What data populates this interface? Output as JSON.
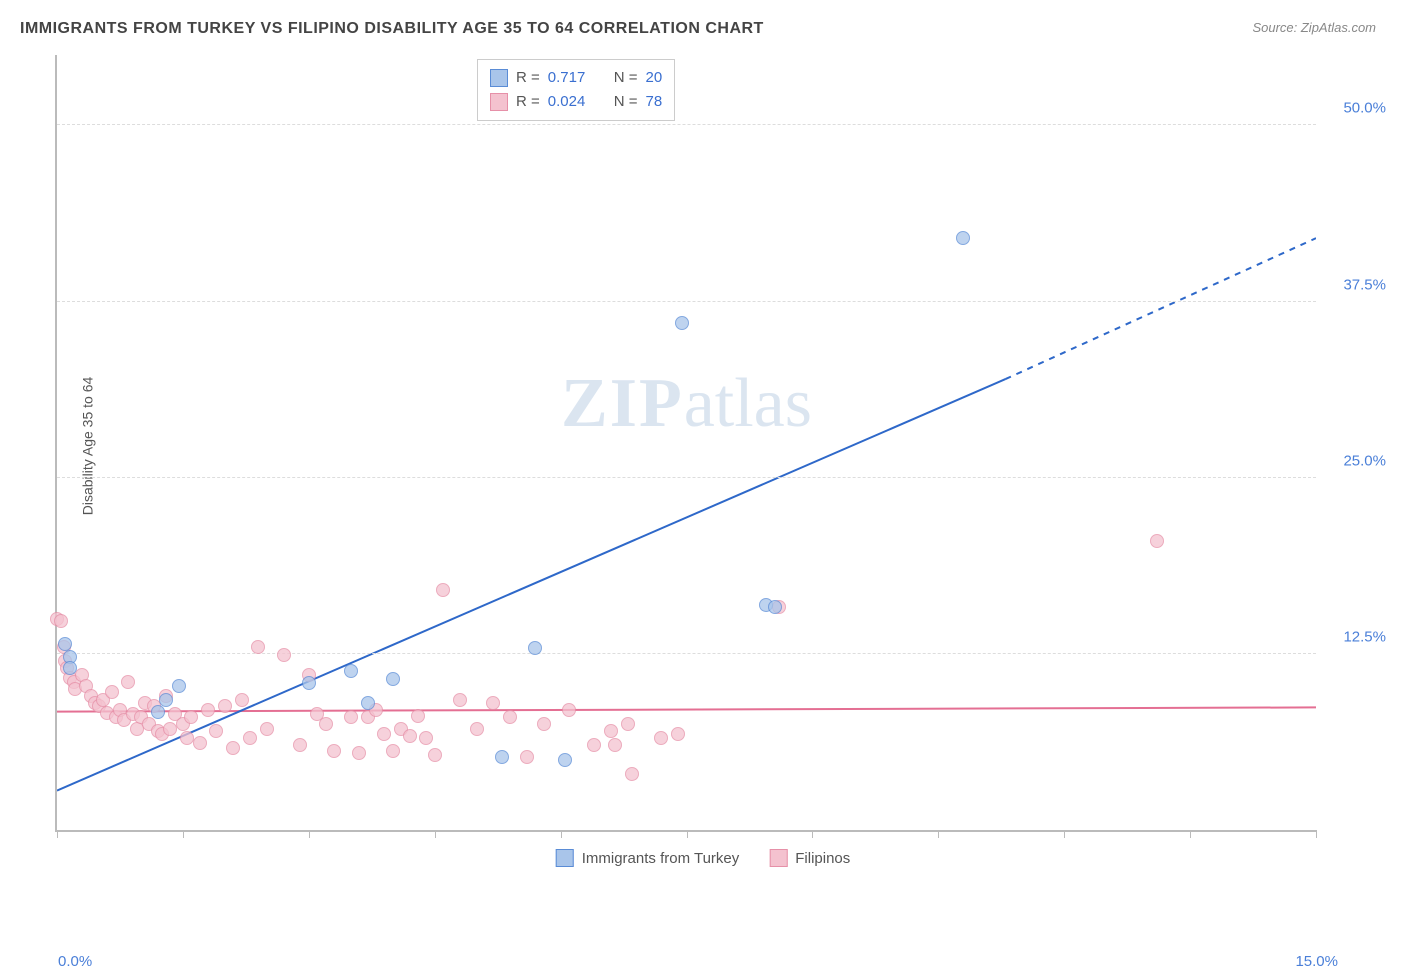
{
  "title": "IMMIGRANTS FROM TURKEY VS FILIPINO DISABILITY AGE 35 TO 64 CORRELATION CHART",
  "source": "Source: ZipAtlas.com",
  "ylabel": "Disability Age 35 to 64",
  "watermark_zip": "ZIP",
  "watermark_atlas": "atlas",
  "chart": {
    "type": "scatter",
    "xlim": [
      0,
      15
    ],
    "ylim": [
      0,
      55
    ],
    "background_color": "#ffffff",
    "grid_color": "#dddddd",
    "x_ticks": [
      0,
      1.5,
      3,
      4.5,
      6,
      7.5,
      9,
      10.5,
      12,
      13.5,
      15
    ],
    "x_tick_labels": {
      "0": "0.0%",
      "15": "15.0%"
    },
    "y_ticks": [
      12.5,
      25.0,
      37.5,
      50.0
    ],
    "y_tick_labels": [
      "12.5%",
      "25.0%",
      "37.5%",
      "50.0%"
    ],
    "axis_label_color": "#4a7fd8",
    "axis_fontsize": 15
  },
  "series": {
    "turkey": {
      "label": "Immigrants from Turkey",
      "color_fill": "#a9c5ea",
      "color_stroke": "#5a8cd6",
      "marker_size": 14,
      "trend_color": "#2e68c9",
      "trend_width": 2,
      "R": "0.717",
      "N": "20",
      "trend": {
        "x1": 0,
        "y1": 2.8,
        "x2": 11.3,
        "y2": 32,
        "x2_dash": 15,
        "y2_dash": 42
      },
      "points": [
        [
          0.1,
          13.2
        ],
        [
          0.15,
          12.3
        ],
        [
          0.15,
          11.5
        ],
        [
          1.45,
          10.2
        ],
        [
          1.3,
          9.2
        ],
        [
          1.2,
          8.4
        ],
        [
          3.5,
          11.3
        ],
        [
          3.0,
          10.4
        ],
        [
          4.0,
          10.7
        ],
        [
          3.7,
          9.0
        ],
        [
          5.3,
          5.2
        ],
        [
          5.7,
          12.9
        ],
        [
          6.05,
          5.0
        ],
        [
          7.45,
          36.0
        ],
        [
          8.45,
          16.0
        ],
        [
          8.55,
          15.8
        ],
        [
          10.8,
          42.0
        ]
      ]
    },
    "filipino": {
      "label": "Filipinos",
      "color_fill": "#f4c2cf",
      "color_stroke": "#e690a8",
      "marker_size": 14,
      "trend_color": "#e46f93",
      "trend_width": 2,
      "R": "0.024",
      "N": "78",
      "trend": {
        "x1": 0,
        "y1": 8.4,
        "x2": 15,
        "y2": 8.7
      },
      "points": [
        [
          0.0,
          15.0
        ],
        [
          0.05,
          14.8
        ],
        [
          0.08,
          13.0
        ],
        [
          0.1,
          12.0
        ],
        [
          0.12,
          11.5
        ],
        [
          0.15,
          10.8
        ],
        [
          0.2,
          10.5
        ],
        [
          0.22,
          10.0
        ],
        [
          0.3,
          11.0
        ],
        [
          0.35,
          10.2
        ],
        [
          0.4,
          9.5
        ],
        [
          0.45,
          9.0
        ],
        [
          0.5,
          8.8
        ],
        [
          0.55,
          9.2
        ],
        [
          0.6,
          8.3
        ],
        [
          0.65,
          9.8
        ],
        [
          0.7,
          8.0
        ],
        [
          0.75,
          8.5
        ],
        [
          0.8,
          7.8
        ],
        [
          0.85,
          10.5
        ],
        [
          0.9,
          8.2
        ],
        [
          0.95,
          7.2
        ],
        [
          1.0,
          8.0
        ],
        [
          1.05,
          9.0
        ],
        [
          1.1,
          7.5
        ],
        [
          1.15,
          8.8
        ],
        [
          1.2,
          7.0
        ],
        [
          1.25,
          6.8
        ],
        [
          1.3,
          9.5
        ],
        [
          1.35,
          7.2
        ],
        [
          1.4,
          8.2
        ],
        [
          1.5,
          7.5
        ],
        [
          1.55,
          6.5
        ],
        [
          1.6,
          8.0
        ],
        [
          1.7,
          6.2
        ],
        [
          1.8,
          8.5
        ],
        [
          1.9,
          7.0
        ],
        [
          2.0,
          8.8
        ],
        [
          2.1,
          5.8
        ],
        [
          2.2,
          9.2
        ],
        [
          2.3,
          6.5
        ],
        [
          2.4,
          13.0
        ],
        [
          2.5,
          7.2
        ],
        [
          2.7,
          12.4
        ],
        [
          2.9,
          6.0
        ],
        [
          3.0,
          11.0
        ],
        [
          3.1,
          8.2
        ],
        [
          3.2,
          7.5
        ],
        [
          3.3,
          5.6
        ],
        [
          3.5,
          8.0
        ],
        [
          3.6,
          5.5
        ],
        [
          3.7,
          8.0
        ],
        [
          3.8,
          8.5
        ],
        [
          3.9,
          6.8
        ],
        [
          4.0,
          5.6
        ],
        [
          4.1,
          7.2
        ],
        [
          4.2,
          6.7
        ],
        [
          4.3,
          8.1
        ],
        [
          4.4,
          6.5
        ],
        [
          4.5,
          5.3
        ],
        [
          4.6,
          17.0
        ],
        [
          4.8,
          9.2
        ],
        [
          5.0,
          7.2
        ],
        [
          5.2,
          9.0
        ],
        [
          5.4,
          8.0
        ],
        [
          5.6,
          5.2
        ],
        [
          5.8,
          7.5
        ],
        [
          6.1,
          8.5
        ],
        [
          6.4,
          6.0
        ],
        [
          6.6,
          7.0
        ],
        [
          6.65,
          6.0
        ],
        [
          6.8,
          7.5
        ],
        [
          6.85,
          4.0
        ],
        [
          7.2,
          6.5
        ],
        [
          7.4,
          6.8
        ],
        [
          8.6,
          15.8
        ],
        [
          13.1,
          20.5
        ]
      ]
    }
  },
  "legend_top": {
    "r_label": "R  =",
    "n_label": "N  =",
    "label_color": "#555555",
    "value_color": "#3a6fd0"
  },
  "legend_bottom_color": "#555555"
}
